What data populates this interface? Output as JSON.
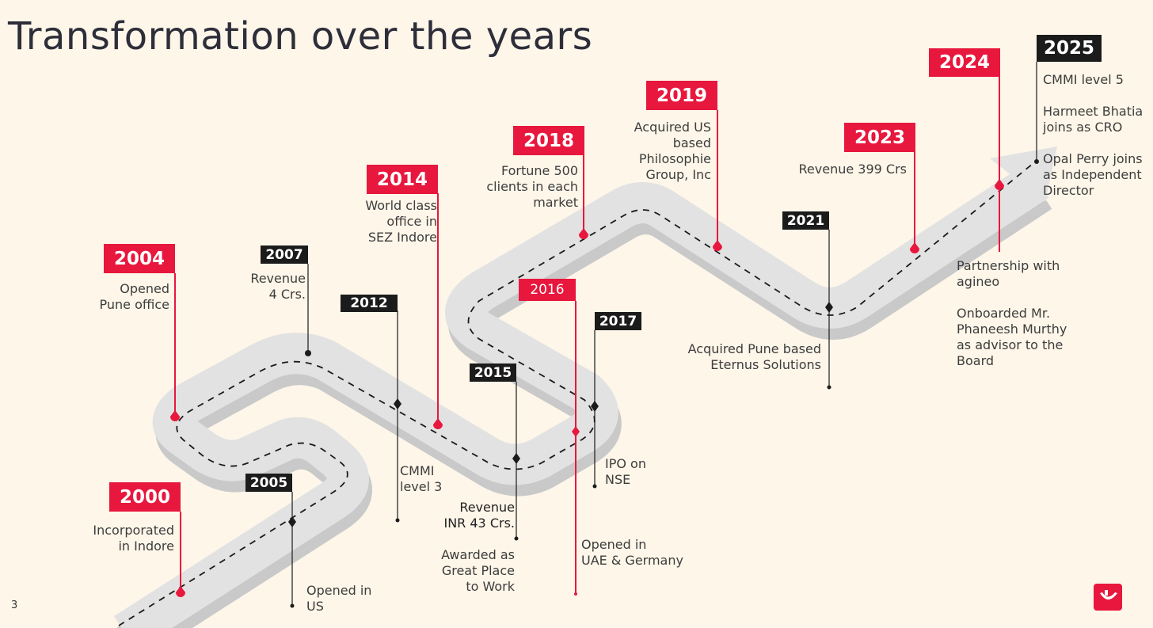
{
  "page": {
    "title": "Transformation over the years",
    "page_number": "3"
  },
  "colors": {
    "background": "#fdf6e9",
    "accent_red": "#e8173d",
    "flag_black": "#1b1b1b",
    "road": "#e2e2e2",
    "road_shadow": "#c4c4c4"
  },
  "milestones": [
    {
      "year": "2000",
      "flag_color": "red",
      "text": "Incorporated\nin Indore"
    },
    {
      "year": "2004",
      "flag_color": "red",
      "text": "Opened\nPune office"
    },
    {
      "year": "2005",
      "flag_color": "black",
      "text": "Opened in\nUS"
    },
    {
      "year": "2007",
      "flag_color": "black",
      "text": "Revenue\n4 Crs."
    },
    {
      "year": "2012",
      "flag_color": "black",
      "text": "CMMI\nlevel 3"
    },
    {
      "year": "2014",
      "flag_color": "red",
      "text": "World class\noffice in\nSEZ Indore"
    },
    {
      "year": "2015",
      "flag_color": "black",
      "text": "Revenue\nINR 43 Crs.",
      "text_2": "Awarded as\nGreat Place\nto Work"
    },
    {
      "year": "2016",
      "flag_color": "red",
      "text": "Opened in\nUAE & Germany"
    },
    {
      "year": "2017",
      "flag_color": "black",
      "text": "IPO on\nNSE"
    },
    {
      "year": "2018",
      "flag_color": "red",
      "text": "Fortune 500\nclients in each\nmarket"
    },
    {
      "year": "2019",
      "flag_color": "red",
      "text": "Acquired US\nbased\nPhilosophie\nGroup, Inc"
    },
    {
      "year": "2021",
      "flag_color": "black",
      "text": "Acquired Pune based\nEternus Solutions"
    },
    {
      "year": "2023",
      "flag_color": "red",
      "text": "Revenue 399 Crs"
    },
    {
      "year": "2024",
      "flag_color": "red",
      "text": "Partnership with\nagineo",
      "text_2": "Onboarded Mr.\nPhaneesh Murthy\nas advisor to the\nBoard"
    },
    {
      "year": "2025",
      "flag_color": "black",
      "text": "CMMI level 5",
      "text_2": "Harmeet Bhatia\njoins as CRO",
      "text_3": "Opal Perry joins\nas Independent\nDirector"
    }
  ],
  "logo": {
    "icon": "brand-logo-icon"
  }
}
